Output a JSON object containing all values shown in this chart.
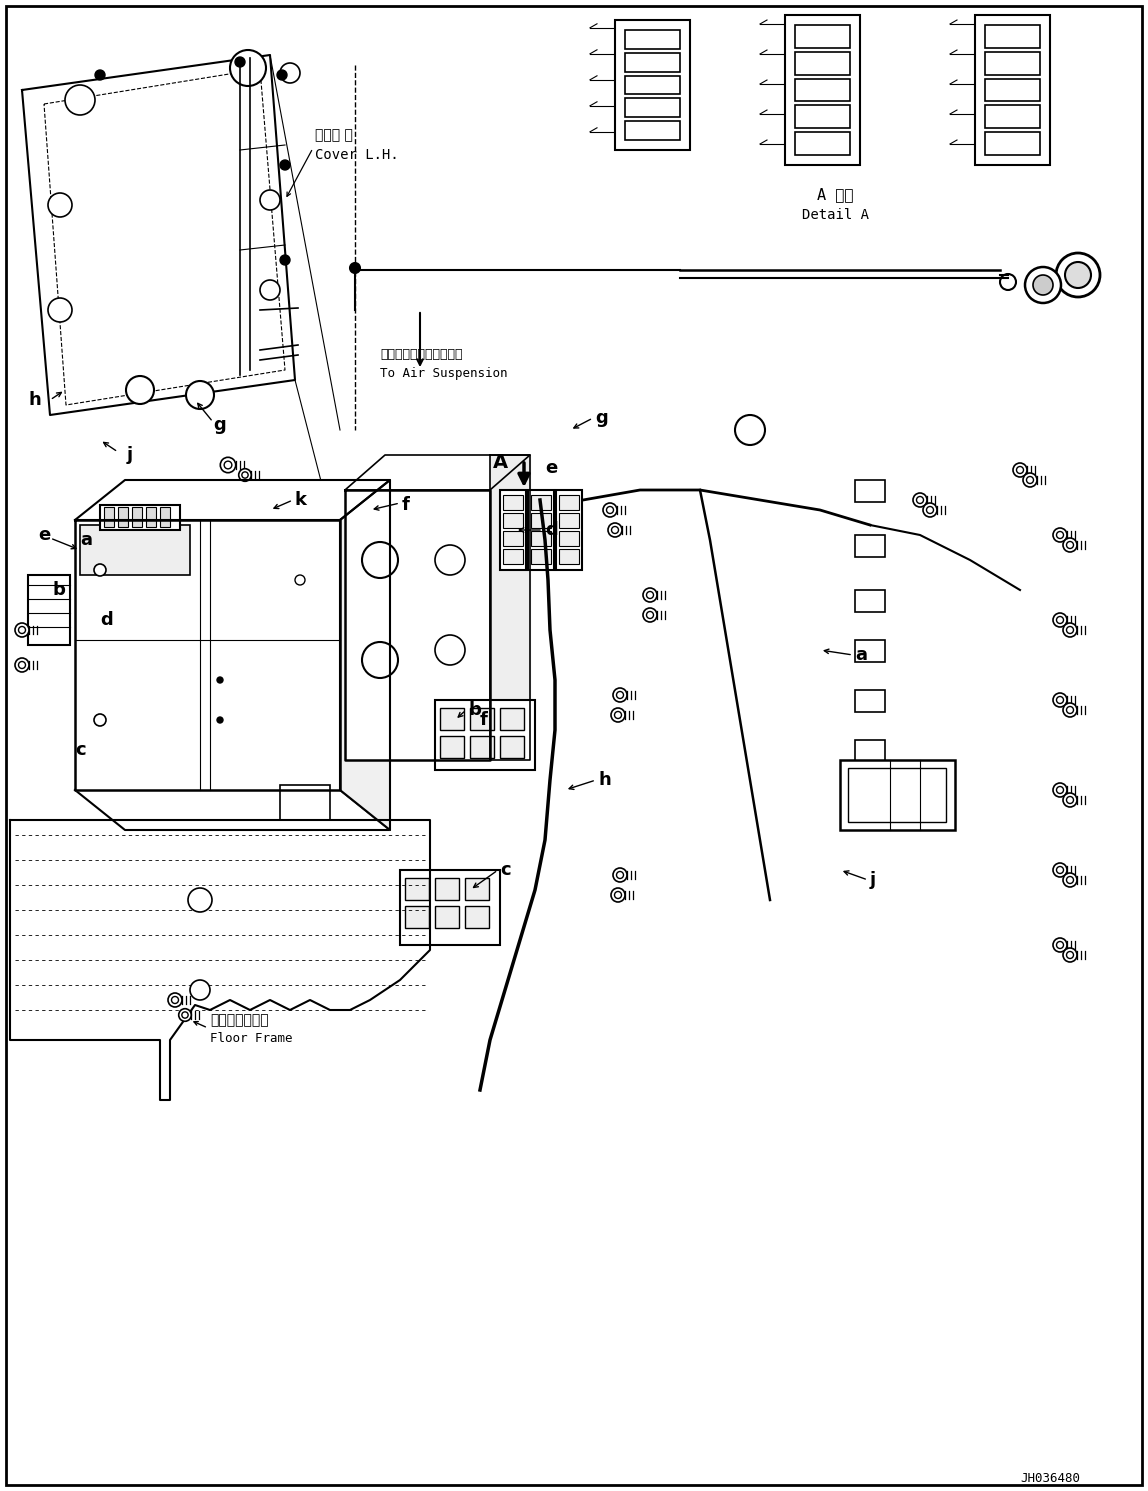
{
  "bg_color": "#ffffff",
  "line_color": "#000000",
  "fig_width": 11.48,
  "fig_height": 14.91,
  "dpi": 100,
  "part_number": "JH036480",
  "detail_label_jp": "A 詳細",
  "detail_label_en": "Detail A",
  "cover_label_jp": "カバー 左",
  "cover_label_en": "Cover L.H.",
  "suspension_label_jp": "エアーサスペンションへ",
  "suspension_label_en": "To Air Suspension",
  "floor_frame_label_jp": "フロアフレーム",
  "floor_frame_label_en": "Floor Frame",
  "arrow_A_label": "A"
}
